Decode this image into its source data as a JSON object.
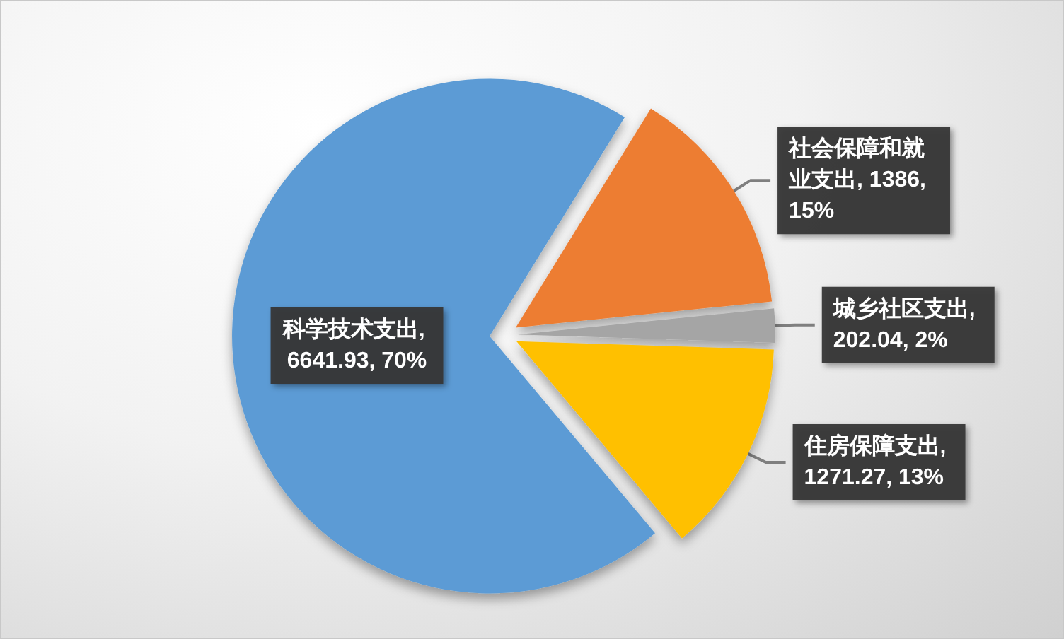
{
  "chart_data": {
    "type": "pie",
    "categories": [
      "科学技术支出",
      "社会保障和就业支出",
      "城乡社区支出",
      "住房保障支出"
    ],
    "values": [
      6641.93,
      1386,
      202.04,
      1271.27
    ],
    "colors": [
      "#5b9bd5",
      "#ed7d31",
      "#a5a5a5",
      "#ffc000"
    ],
    "value_labels": [
      ", 6641.93, 70%",
      ", 1386, 15%",
      ", 202.04, 2%",
      ", 1271.27, 13%"
    ]
  }
}
